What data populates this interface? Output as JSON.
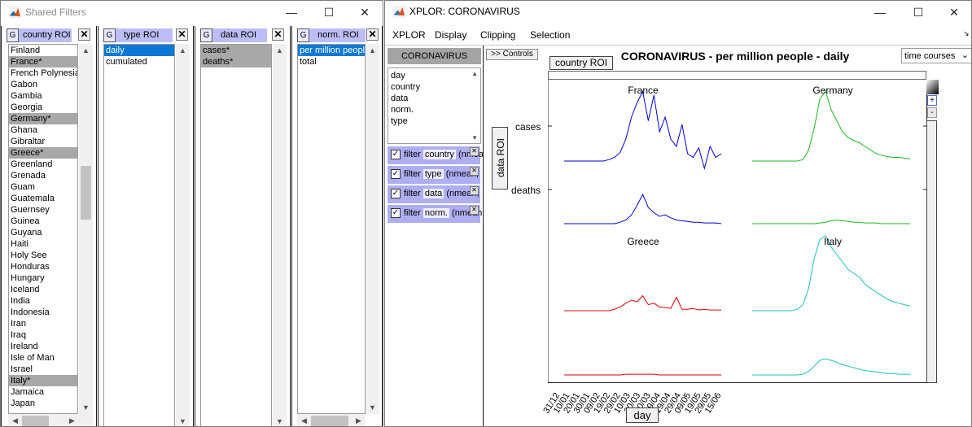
{
  "shared_filters": {
    "title": "Shared Filters",
    "window_controls": {
      "minimize": "—",
      "maximize": "☐",
      "close": "✕"
    },
    "panels": [
      {
        "key": "country",
        "g": "G",
        "label": "country ROI",
        "close": "✕",
        "items": [
          {
            "t": "Finland",
            "s": ""
          },
          {
            "t": "France*",
            "s": "sel"
          },
          {
            "t": "French Polynesia",
            "s": ""
          },
          {
            "t": "Gabon",
            "s": ""
          },
          {
            "t": "Gambia",
            "s": ""
          },
          {
            "t": "Georgia",
            "s": ""
          },
          {
            "t": "Germany*",
            "s": "sel"
          },
          {
            "t": "Ghana",
            "s": ""
          },
          {
            "t": "Gibraltar",
            "s": ""
          },
          {
            "t": "Greece*",
            "s": "sel"
          },
          {
            "t": "Greenland",
            "s": ""
          },
          {
            "t": "Grenada",
            "s": ""
          },
          {
            "t": "Guam",
            "s": ""
          },
          {
            "t": "Guatemala",
            "s": ""
          },
          {
            "t": "Guernsey",
            "s": ""
          },
          {
            "t": "Guinea",
            "s": ""
          },
          {
            "t": "Guyana",
            "s": ""
          },
          {
            "t": "Haiti",
            "s": ""
          },
          {
            "t": "Holy See",
            "s": ""
          },
          {
            "t": "Honduras",
            "s": ""
          },
          {
            "t": "Hungary",
            "s": ""
          },
          {
            "t": "Iceland",
            "s": ""
          },
          {
            "t": "India",
            "s": ""
          },
          {
            "t": "Indonesia",
            "s": ""
          },
          {
            "t": "Iran",
            "s": ""
          },
          {
            "t": "Iraq",
            "s": ""
          },
          {
            "t": "Ireland",
            "s": ""
          },
          {
            "t": "Isle of Man",
            "s": ""
          },
          {
            "t": "Israel",
            "s": ""
          },
          {
            "t": "Italy*",
            "s": "sel"
          },
          {
            "t": "Jamaica",
            "s": ""
          },
          {
            "t": "Japan",
            "s": ""
          }
        ]
      },
      {
        "key": "type",
        "g": "G",
        "label": "type ROI",
        "close": "✕",
        "items": [
          {
            "t": "daily",
            "s": "hl"
          },
          {
            "t": "cumulated",
            "s": ""
          }
        ]
      },
      {
        "key": "data",
        "g": "G",
        "label": "data ROI",
        "close": "✕",
        "items": [
          {
            "t": "cases*",
            "s": "sel"
          },
          {
            "t": "deaths*",
            "s": "sel"
          }
        ]
      },
      {
        "key": "norm",
        "g": "G",
        "label": "norm. ROI",
        "close": "✕",
        "items": [
          {
            "t": "per million people",
            "s": "hl"
          },
          {
            "t": "total",
            "s": ""
          }
        ]
      }
    ]
  },
  "xplor": {
    "title": "XPLOR: CORONAVIRUS",
    "window_controls": {
      "minimize": "—",
      "maximize": "☐",
      "close": "✕"
    },
    "menu": [
      "XPLOR",
      "Display",
      "Clipping",
      "Selection"
    ],
    "sidebar": {
      "header": "CORONAVIRUS",
      "dims": [
        "day",
        "country",
        "data",
        "norm.",
        "type"
      ],
      "filters": [
        {
          "pre": "filter",
          "chip": "country",
          "post": "(nmea"
        },
        {
          "pre": "filter",
          "chip": "type",
          "post": "(nmean,"
        },
        {
          "pre": "filter",
          "chip": "data",
          "post": "(nmean,"
        },
        {
          "pre": "filter",
          "chip": "norm.",
          "post": "(nmean"
        }
      ]
    },
    "controls_button": ">> Controls",
    "plot_title": "CORONAVIRUS - per million people - daily",
    "display_mode": {
      "selected": "time courses"
    },
    "country_roi_label": "country ROI",
    "data_roi_label": "data ROI",
    "day_label": "day",
    "zoom_plus": "+",
    "zoom_minus": "-",
    "row_labels": [
      "cases",
      "deaths"
    ]
  },
  "chart_data": {
    "type": "line",
    "title": "CORONAVIRUS - per million people - daily",
    "x_tick_labels": [
      "31/12",
      "10/01",
      "20/01",
      "30/01",
      "09/02",
      "19/02",
      "29/02",
      "10/03",
      "20/03",
      "30/03",
      "09/04",
      "19/04",
      "29/04",
      "09/05",
      "19/05",
      "29/05",
      "15/06"
    ],
    "row_labels": [
      "cases",
      "deaths"
    ],
    "grid": false,
    "panels": [
      {
        "country": "France",
        "color": "#0000d0",
        "cases": [
          0,
          0,
          0,
          0,
          0,
          0,
          0,
          0,
          0.02,
          0.05,
          0.12,
          0.3,
          0.6,
          0.8,
          0.95,
          0.55,
          0.9,
          0.4,
          0.6,
          0.3,
          0.2,
          0.5,
          0.1,
          0.05,
          0.18,
          -0.1,
          0.2,
          0.05,
          0.1
        ],
        "deaths": [
          0,
          0,
          0,
          0,
          0,
          0,
          0,
          0,
          0,
          0,
          0.02,
          0.05,
          0.12,
          0.25,
          0.4,
          0.22,
          0.15,
          0.1,
          0.12,
          0.08,
          0.05,
          0.04,
          0.03,
          0.02,
          0.02,
          0.01,
          0.01,
          0.01,
          0
        ]
      },
      {
        "country": "Germany",
        "color": "#1cb81c",
        "cases": [
          0,
          0,
          0,
          0,
          0,
          0,
          0,
          0,
          0,
          0.02,
          0.15,
          0.45,
          0.85,
          0.95,
          0.7,
          0.55,
          0.4,
          0.32,
          0.28,
          0.25,
          0.2,
          0.15,
          0.1,
          0.08,
          0.06,
          0.05,
          0.05,
          0.04,
          0.03
        ],
        "deaths": [
          0,
          0,
          0,
          0,
          0,
          0,
          0,
          0,
          0,
          0,
          0,
          0,
          0.01,
          0.02,
          0.04,
          0.05,
          0.04,
          0.03,
          0.02,
          0.02,
          0.01,
          0.01,
          0.01,
          0,
          0,
          0,
          0,
          0,
          0
        ]
      },
      {
        "country": "Greece",
        "color": "#e00000",
        "cases": [
          0,
          0,
          0,
          0,
          0,
          0,
          0,
          0,
          0,
          0.02,
          0.05,
          0.1,
          0.14,
          0.12,
          0.2,
          0.08,
          0.1,
          0.05,
          0.04,
          0.03,
          0.18,
          0.02,
          0.02,
          0.03,
          0.01,
          0.02,
          0.01,
          0.01,
          0.01
        ],
        "deaths": [
          0,
          0,
          0,
          0,
          0,
          0,
          0,
          0,
          0,
          0,
          0,
          0.01,
          0.01,
          0.01,
          0.01,
          0.01,
          0.01,
          0,
          0,
          0,
          0,
          0,
          0,
          0,
          0,
          0,
          0,
          0,
          0
        ]
      },
      {
        "country": "Italy",
        "color": "#1cc0c0",
        "cases": [
          0,
          0,
          0,
          0,
          0,
          0,
          0,
          0,
          0.02,
          0.08,
          0.3,
          0.7,
          0.95,
          1.0,
          0.85,
          0.75,
          0.65,
          0.55,
          0.5,
          0.45,
          0.35,
          0.3,
          0.25,
          0.2,
          0.15,
          0.12,
          0.1,
          0.08,
          0.06
        ],
        "deaths": [
          0,
          0,
          0,
          0,
          0,
          0,
          0,
          0,
          0,
          0.01,
          0.05,
          0.12,
          0.2,
          0.22,
          0.2,
          0.17,
          0.14,
          0.12,
          0.1,
          0.08,
          0.06,
          0.05,
          0.04,
          0.03,
          0.02,
          0.02,
          0.01,
          0.01,
          0.01
        ]
      }
    ]
  }
}
